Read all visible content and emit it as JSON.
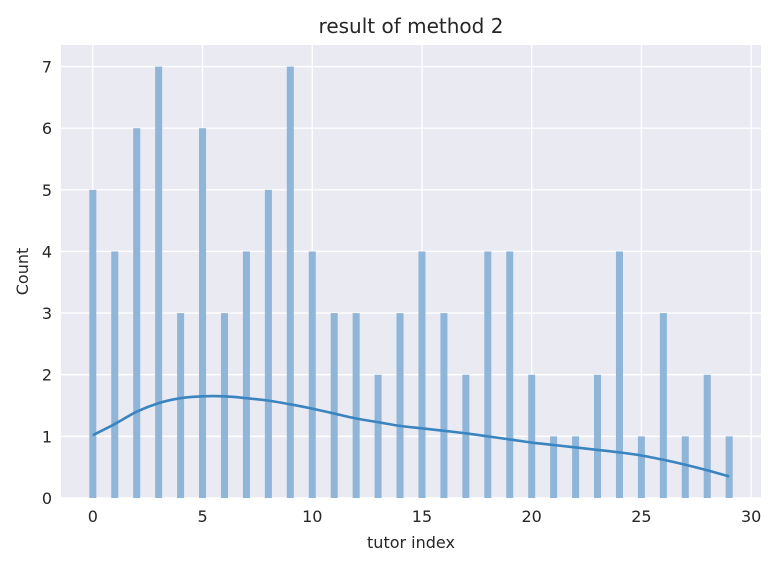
{
  "chart_data": {
    "type": "bar",
    "title": "result of method 2",
    "xlabel": "tutor index",
    "ylabel": "Count",
    "xlim": [
      -1.45,
      30.45
    ],
    "ylim": [
      0,
      7.35
    ],
    "xticks": [
      0,
      5,
      10,
      15,
      20,
      25,
      30
    ],
    "yticks": [
      0,
      1,
      2,
      3,
      4,
      5,
      6,
      7
    ],
    "grid": true,
    "colors": {
      "background": "#eaeaf2",
      "grid": "#ffffff",
      "bar": "#8fb6d8",
      "kde": "#3a84c0"
    },
    "series": [
      {
        "values": [
          {
            "x": 0,
            "y": 5
          },
          {
            "x": 1,
            "y": 4
          },
          {
            "x": 2,
            "y": 6
          },
          {
            "x": 3,
            "y": 7
          },
          {
            "x": 4,
            "y": 3
          },
          {
            "x": 5,
            "y": 6
          },
          {
            "x": 6,
            "y": 3
          },
          {
            "x": 7,
            "y": 4
          },
          {
            "x": 8,
            "y": 5
          },
          {
            "x": 9,
            "y": 7
          },
          {
            "x": 10,
            "y": 4
          },
          {
            "x": 11,
            "y": 3
          },
          {
            "x": 12,
            "y": 3
          },
          {
            "x": 13,
            "y": 2
          },
          {
            "x": 14,
            "y": 3
          },
          {
            "x": 15,
            "y": 4
          },
          {
            "x": 16,
            "y": 3
          },
          {
            "x": 17,
            "y": 2
          },
          {
            "x": 18,
            "y": 4
          },
          {
            "x": 19,
            "y": 4
          },
          {
            "x": 20,
            "y": 2
          },
          {
            "x": 21,
            "y": 1
          },
          {
            "x": 22,
            "y": 1
          },
          {
            "x": 23,
            "y": 2
          },
          {
            "x": 24,
            "y": 4
          },
          {
            "x": 25,
            "y": 1
          },
          {
            "x": 26,
            "y": 3
          },
          {
            "x": 27,
            "y": 1
          },
          {
            "x": 28,
            "y": 2
          },
          {
            "x": 29,
            "y": 1
          }
        ]
      }
    ],
    "kde": [
      {
        "x": 0,
        "y": 1.02
      },
      {
        "x": 1,
        "y": 1.2
      },
      {
        "x": 2,
        "y": 1.4
      },
      {
        "x": 3,
        "y": 1.54
      },
      {
        "x": 4,
        "y": 1.62
      },
      {
        "x": 5,
        "y": 1.65
      },
      {
        "x": 6,
        "y": 1.65
      },
      {
        "x": 7,
        "y": 1.62
      },
      {
        "x": 8,
        "y": 1.58
      },
      {
        "x": 9,
        "y": 1.52
      },
      {
        "x": 10,
        "y": 1.45
      },
      {
        "x": 11,
        "y": 1.37
      },
      {
        "x": 12,
        "y": 1.29
      },
      {
        "x": 13,
        "y": 1.23
      },
      {
        "x": 14,
        "y": 1.17
      },
      {
        "x": 15,
        "y": 1.13
      },
      {
        "x": 16,
        "y": 1.09
      },
      {
        "x": 17,
        "y": 1.05
      },
      {
        "x": 18,
        "y": 1.0
      },
      {
        "x": 19,
        "y": 0.95
      },
      {
        "x": 20,
        "y": 0.9
      },
      {
        "x": 21,
        "y": 0.86
      },
      {
        "x": 22,
        "y": 0.82
      },
      {
        "x": 23,
        "y": 0.78
      },
      {
        "x": 24,
        "y": 0.74
      },
      {
        "x": 25,
        "y": 0.69
      },
      {
        "x": 26,
        "y": 0.62
      },
      {
        "x": 27,
        "y": 0.54
      },
      {
        "x": 28,
        "y": 0.45
      },
      {
        "x": 29,
        "y": 0.35
      }
    ]
  }
}
